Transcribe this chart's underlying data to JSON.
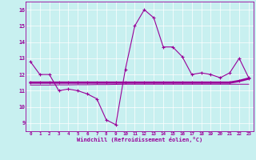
{
  "xlabel": "Windchill (Refroidissement éolien,°C)",
  "background_color": "#c8f0f0",
  "line_color": "#990099",
  "grid_color": "#ffffff",
  "xlim": [
    -0.5,
    23.5
  ],
  "ylim": [
    8.5,
    16.5
  ],
  "yticks": [
    9,
    10,
    11,
    12,
    13,
    14,
    15,
    16
  ],
  "xticks": [
    0,
    1,
    2,
    3,
    4,
    5,
    6,
    7,
    8,
    9,
    10,
    11,
    12,
    13,
    14,
    15,
    16,
    17,
    18,
    19,
    20,
    21,
    22,
    23
  ],
  "series1_x": [
    0,
    1,
    2,
    3,
    4,
    5,
    6,
    7,
    8,
    9,
    10,
    11,
    12,
    13,
    14,
    15,
    16,
    17,
    18,
    19,
    20,
    21,
    22,
    23
  ],
  "series1_y": [
    12.8,
    12.0,
    12.0,
    11.0,
    11.1,
    11.0,
    10.8,
    10.5,
    9.2,
    8.9,
    12.3,
    15.0,
    16.0,
    15.5,
    13.7,
    13.7,
    13.1,
    12.0,
    12.1,
    12.0,
    11.8,
    12.1,
    13.0,
    11.8
  ],
  "series2_x": [
    0,
    1,
    2,
    3,
    4,
    5,
    6,
    7,
    8,
    9,
    10,
    11,
    12,
    13,
    14,
    15,
    16,
    17,
    18,
    19,
    20,
    21,
    22,
    23
  ],
  "series2_y": [
    11.5,
    11.5,
    11.5,
    11.5,
    11.5,
    11.5,
    11.5,
    11.5,
    11.5,
    11.5,
    11.5,
    11.5,
    11.5,
    11.5,
    11.5,
    11.5,
    11.5,
    11.5,
    11.5,
    11.5,
    11.5,
    11.5,
    11.6,
    11.75
  ],
  "series3_x": [
    0,
    1,
    2,
    3,
    4,
    5,
    6,
    7,
    8,
    9,
    10,
    11,
    12,
    13,
    14,
    15,
    16,
    17,
    18,
    19,
    20,
    21,
    22,
    23
  ],
  "series3_y": [
    11.35,
    11.35,
    11.35,
    11.36,
    11.36,
    11.37,
    11.37,
    11.38,
    11.38,
    11.39,
    11.4,
    11.4,
    11.4,
    11.4,
    11.4,
    11.4,
    11.4,
    11.4,
    11.4,
    11.4,
    11.4,
    11.4,
    11.4,
    11.4
  ]
}
